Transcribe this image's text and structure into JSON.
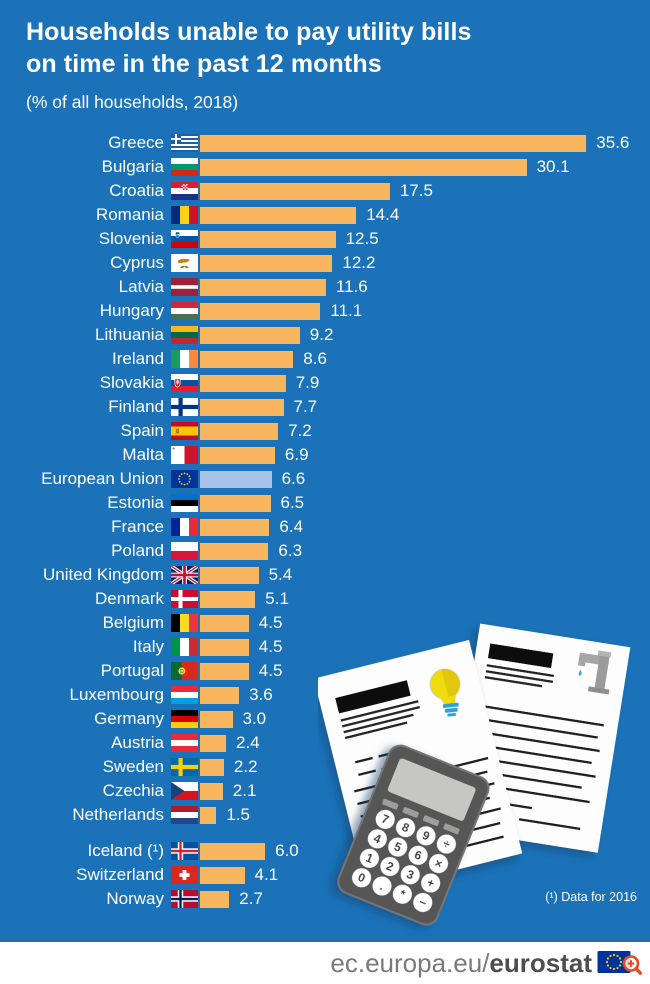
{
  "page": {
    "title_line1": "Households unable to pay utility bills",
    "title_line2": "on time in the past 12 months",
    "subtitle": "(% of all households, 2018)",
    "footnote": "(¹) Data for 2016"
  },
  "footer": {
    "url_regular": "ec.europa.eu/",
    "url_bold": "eurostat",
    "logo_icon": "eu-flag-magnifier-icon"
  },
  "colors": {
    "background": "#1b72b8",
    "bar": "#f8b75f",
    "eu_bar": "#a8c3e8",
    "text": "#ffffff",
    "footer_text": "#7a7a7a",
    "footer_text_bold": "#4e4e4e"
  },
  "illustration": {
    "items": [
      "electricity-bill-document",
      "water-bill-document",
      "calculator"
    ],
    "calculator_keys": [
      [
        "7",
        "8",
        "9",
        "÷"
      ],
      [
        "4",
        "5",
        "6",
        "×"
      ],
      [
        "1",
        "2",
        "3",
        "+"
      ],
      [
        "0",
        ".",
        "*",
        "−"
      ]
    ]
  },
  "chart_data": {
    "type": "bar",
    "orientation": "horizontal",
    "title": "Households unable to pay utility bills on time in the past 12 months",
    "unit_label": "% of all households",
    "year": 2018,
    "xlim": [
      0,
      40
    ],
    "grid": false,
    "highlight_category": "European Union",
    "rows": [
      {
        "country": "Greece",
        "flag": "gr",
        "value": 35.6
      },
      {
        "country": "Bulgaria",
        "flag": "bg",
        "value": 30.1
      },
      {
        "country": "Croatia",
        "flag": "hr",
        "value": 17.5
      },
      {
        "country": "Romania",
        "flag": "ro",
        "value": 14.4
      },
      {
        "country": "Slovenia",
        "flag": "si",
        "value": 12.5
      },
      {
        "country": "Cyprus",
        "flag": "cy",
        "value": 12.2
      },
      {
        "country": "Latvia",
        "flag": "lv",
        "value": 11.6
      },
      {
        "country": "Hungary",
        "flag": "hu",
        "value": 11.1
      },
      {
        "country": "Lithuania",
        "flag": "lt",
        "value": 9.2
      },
      {
        "country": "Ireland",
        "flag": "ie",
        "value": 8.6
      },
      {
        "country": "Slovakia",
        "flag": "sk",
        "value": 7.9
      },
      {
        "country": "Finland",
        "flag": "fi",
        "value": 7.7
      },
      {
        "country": "Spain",
        "flag": "es",
        "value": 7.2
      },
      {
        "country": "Malta",
        "flag": "mt",
        "value": 6.9
      },
      {
        "country": "European Union",
        "flag": "eu",
        "value": 6.6
      },
      {
        "country": "Estonia",
        "flag": "ee",
        "value": 6.5
      },
      {
        "country": "France",
        "flag": "fr",
        "value": 6.4
      },
      {
        "country": "Poland",
        "flag": "pl",
        "value": 6.3
      },
      {
        "country": "United Kingdom",
        "flag": "gb",
        "value": 5.4
      },
      {
        "country": "Denmark",
        "flag": "dk",
        "value": 5.1
      },
      {
        "country": "Belgium",
        "flag": "be",
        "value": 4.5
      },
      {
        "country": "Italy",
        "flag": "it",
        "value": 4.5
      },
      {
        "country": "Portugal",
        "flag": "pt",
        "value": 4.5
      },
      {
        "country": "Luxembourg",
        "flag": "lu",
        "value": 3.6
      },
      {
        "country": "Germany",
        "flag": "de",
        "value": 3.0
      },
      {
        "country": "Austria",
        "flag": "at",
        "value": 2.4
      },
      {
        "country": "Sweden",
        "flag": "se",
        "value": 2.2
      },
      {
        "country": "Czechia",
        "flag": "cz",
        "value": 2.1
      },
      {
        "country": "Netherlands",
        "flag": "nl",
        "value": 1.5
      }
    ],
    "efta_rows": [
      {
        "country": "Iceland (¹)",
        "flag": "is",
        "value": 6.0
      },
      {
        "country": "Switzerland",
        "flag": "ch",
        "value": 4.1
      },
      {
        "country": "Norway",
        "flag": "no",
        "value": 2.7
      }
    ]
  }
}
